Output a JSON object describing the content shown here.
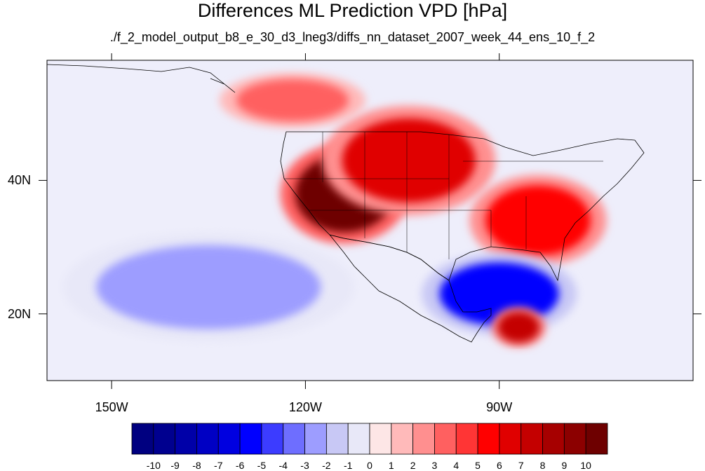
{
  "title": "Differences ML Prediction VPD [hPa]",
  "subtitle": "./f_2_model_output_b8_e_30_d3_lneg3/diffs_nn_dataset_2007_week_44_ens_10_f_2",
  "map": {
    "projection": "lat-lon",
    "lon_range": [
      -160,
      -60
    ],
    "lat_range": [
      10,
      58
    ],
    "lat_ticks": [
      {
        "value": 40,
        "label": "40N"
      },
      {
        "value": 20,
        "label": "20N"
      }
    ],
    "lon_ticks": [
      {
        "value": -150,
        "label": "150W"
      },
      {
        "value": -120,
        "label": "120W"
      },
      {
        "value": -90,
        "label": "90W"
      }
    ],
    "colors": {
      "positive_max": "#800000",
      "negative_max": "#000080",
      "neutral": "#ffffff"
    },
    "features": [
      {
        "name": "western-us-positive",
        "lon": -114,
        "lat": 38,
        "value": 10
      },
      {
        "name": "central-plains-positive",
        "lon": -104,
        "lat": 43,
        "value": 6
      },
      {
        "name": "southeast-us-positive",
        "lon": -84,
        "lat": 34,
        "value": 5
      },
      {
        "name": "gulf-of-mexico-negative",
        "lon": -90,
        "lat": 23,
        "value": -6
      },
      {
        "name": "caribbean-positive",
        "lon": -87,
        "lat": 18,
        "value": 7
      },
      {
        "name": "eastern-pacific-negative",
        "lon": -135,
        "lat": 24,
        "value": -3
      },
      {
        "name": "gulf-of-alaska-positive",
        "lon": -122,
        "lat": 52,
        "value": 3
      }
    ]
  },
  "colorbar": {
    "levels": [
      "-10",
      "-9",
      "-8",
      "-7",
      "-6",
      "-5",
      "-4",
      "-3",
      "-2",
      "-1",
      "0",
      "1",
      "2",
      "3",
      "4",
      "5",
      "6",
      "7",
      "8",
      "9",
      "10"
    ],
    "colors": [
      "#000080",
      "#00008f",
      "#0000a8",
      "#0000c4",
      "#0000e0",
      "#0000ff",
      "#3c3cff",
      "#6e6eff",
      "#9d9dff",
      "#c8c8f5",
      "#e8e8f8",
      "#fde6e6",
      "#ffbaba",
      "#ff8f8f",
      "#ff6060",
      "#ff3535",
      "#ff0000",
      "#e00000",
      "#c40000",
      "#a60000",
      "#8c0000",
      "#6e0000"
    ]
  }
}
